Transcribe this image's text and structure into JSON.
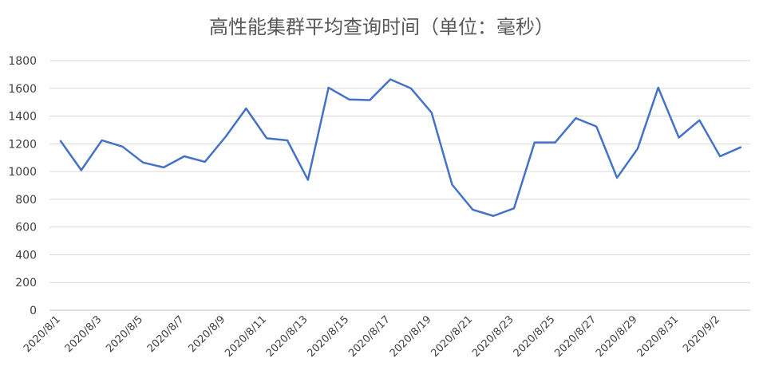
{
  "chart_data": {
    "type": "line",
    "title": "高性能集群平均查询时间（单位：毫秒）",
    "xlabel": "",
    "ylabel": "",
    "ylim": [
      0,
      1800
    ],
    "yticks": [
      0,
      200,
      400,
      600,
      800,
      1000,
      1200,
      1400,
      1600,
      1800
    ],
    "grid": true,
    "color": "#4472C4",
    "categories": [
      "2020/8/1",
      "2020/8/2",
      "2020/8/3",
      "2020/8/4",
      "2020/8/5",
      "2020/8/6",
      "2020/8/7",
      "2020/8/8",
      "2020/8/9",
      "2020/8/10",
      "2020/8/11",
      "2020/8/12",
      "2020/8/13",
      "2020/8/14",
      "2020/8/15",
      "2020/8/16",
      "2020/8/17",
      "2020/8/18",
      "2020/8/19",
      "2020/8/20",
      "2020/8/21",
      "2020/8/22",
      "2020/8/23",
      "2020/8/24",
      "2020/8/25",
      "2020/8/26",
      "2020/8/27",
      "2020/8/28",
      "2020/8/29",
      "2020/8/30",
      "2020/8/31",
      "2020/9/1",
      "2020/9/2",
      "2020/9/3"
    ],
    "tick_labels": [
      "2020/8/1",
      "2020/8/3",
      "2020/8/5",
      "2020/8/7",
      "2020/8/9",
      "2020/8/11",
      "2020/8/13",
      "2020/8/15",
      "2020/8/17",
      "2020/8/19",
      "2020/8/21",
      "2020/8/23",
      "2020/8/25",
      "2020/8/27",
      "2020/8/29",
      "2020/8/31",
      "2020/9/2"
    ],
    "values": [
      1220,
      1010,
      1225,
      1180,
      1065,
      1030,
      1110,
      1070,
      1250,
      1455,
      1240,
      1225,
      940,
      1605,
      1520,
      1515,
      1665,
      1600,
      1425,
      905,
      725,
      680,
      735,
      1210,
      1210,
      1385,
      1325,
      955,
      1165,
      1605,
      1245,
      1370,
      1110,
      1175
    ]
  }
}
